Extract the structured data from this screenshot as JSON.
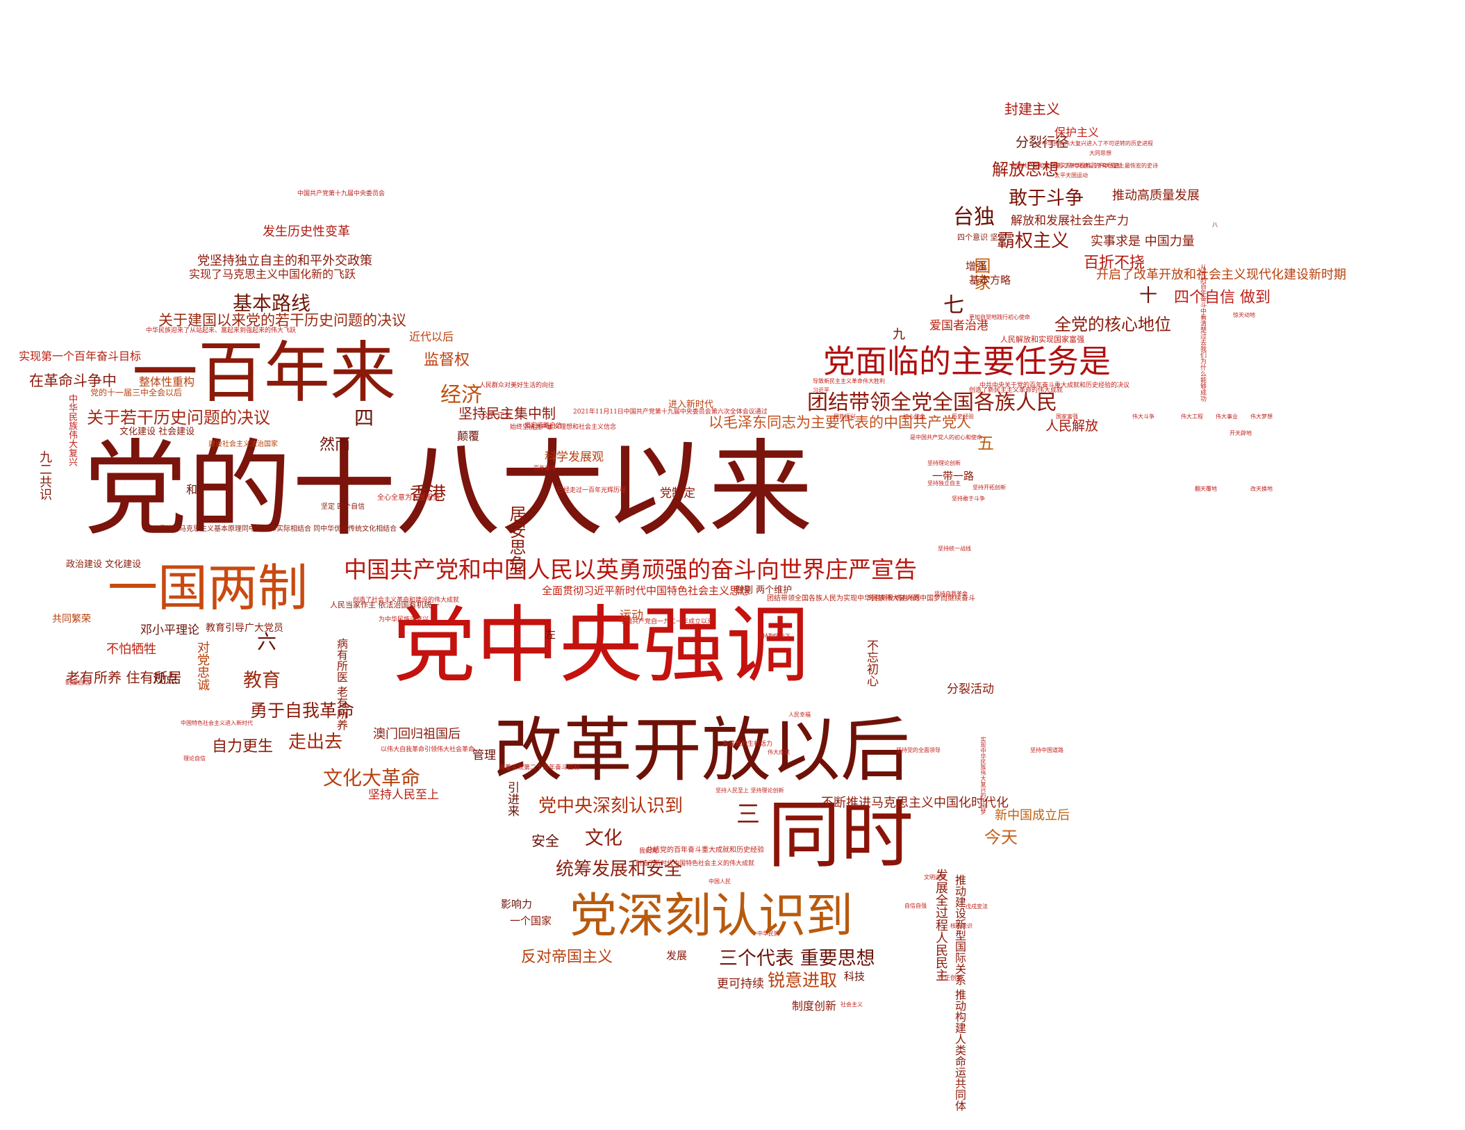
{
  "words": [
    {
      "text": "党的十八大以来",
      "color": "#7a140c"
    },
    {
      "text": "党中央强调",
      "color": "#c4120e"
    },
    {
      "text": "改革开放以后",
      "color": "#6e1208"
    },
    {
      "text": "一百年来",
      "color": "#8b1a0a"
    },
    {
      "text": "一国两制",
      "color": "#c84a10"
    },
    {
      "text": "同时",
      "color": "#8a1408"
    },
    {
      "text": "党深刻认识到",
      "color": "#b85a0e"
    },
    {
      "text": "党面临的主要任务是",
      "color": "#b01010"
    },
    {
      "text": "中国共产党和中国人民以英勇顽强的奋斗向世界庄严宣告",
      "color": "#b8160e"
    },
    {
      "text": "团结带领全党全国各族人民",
      "color": "#8e1a0c"
    },
    {
      "text": "以毛泽东同志为主要代表的中国共产党人",
      "color": "#c4501a"
    },
    {
      "text": "关于若干历史问题的决议",
      "color": "#a62814"
    },
    {
      "text": "关于建国以来党的若干历史问题的决议",
      "color": "#9a2a10"
    },
    {
      "text": "全面贯彻习近平新时代中国特色社会主义思想",
      "color": "#c02010"
    },
    {
      "text": "不断推进马克思主义中国化时代化",
      "color": "#902010"
    },
    {
      "text": "党中央深刻认识到",
      "color": "#b0300c"
    },
    {
      "text": "统筹发展和安全",
      "color": "#8a2010"
    },
    {
      "text": "三个代表 重要思想",
      "color": "#6a1208"
    },
    {
      "text": "勇于自我革命",
      "color": "#8a1a0a"
    },
    {
      "text": "文化大革命",
      "color": "#b8400e"
    },
    {
      "text": "走出去",
      "color": "#a8280c"
    },
    {
      "text": "自力更生",
      "color": "#8a1a0a"
    },
    {
      "text": "教育",
      "color": "#9a2a0e"
    },
    {
      "text": "香港",
      "color": "#8e1a0c"
    },
    {
      "text": "经济",
      "color": "#c0500e"
    },
    {
      "text": "基本路线",
      "color": "#6e1808"
    },
    {
      "text": "台独",
      "color": "#6a1006"
    },
    {
      "text": "敢于斗争",
      "color": "#7a1408"
    },
    {
      "text": "霸权主义",
      "color": "#8a1408"
    },
    {
      "text": "百折不挠",
      "color": "#b01810"
    },
    {
      "text": "全党的核心地位",
      "color": "#8a1a0c"
    },
    {
      "text": "解放思想",
      "color": "#9a1a0c"
    },
    {
      "text": "封建主义",
      "color": "#b01810"
    },
    {
      "text": "保护主义",
      "color": "#c0201a"
    },
    {
      "text": "分裂行径",
      "color": "#6e1608"
    },
    {
      "text": "人民解放",
      "color": "#a81a0e"
    },
    {
      "text": "今天",
      "color": "#c4601a"
    },
    {
      "text": "文化",
      "color": "#8a1a0a"
    },
    {
      "text": "锐意进取",
      "color": "#b8400e"
    },
    {
      "text": "反对帝国主义",
      "color": "#b8400e"
    },
    {
      "text": "澳门回归祖国后",
      "color": "#8a1a0c"
    },
    {
      "text": "发生历史性变革",
      "color": "#b01810"
    },
    {
      "text": "党坚持独立自主的和平外交政策",
      "color": "#8a1a0c"
    },
    {
      "text": "实现了马克思主义中国化新的飞跃",
      "color": "#9a2010"
    },
    {
      "text": "监督权",
      "color": "#c0400e"
    },
    {
      "text": "坚持民主集中制",
      "color": "#8a1a0c"
    },
    {
      "text": "科学发展观",
      "color": "#b8400e"
    },
    {
      "text": "五",
      "color": "#c06010"
    },
    {
      "text": "四",
      "color": "#6a1006"
    },
    {
      "text": "三",
      "color": "#8a1a0a"
    },
    {
      "text": "六",
      "color": "#6a1006"
    },
    {
      "text": "七",
      "color": "#6a1006"
    },
    {
      "text": "国家",
      "color": "#c06010"
    },
    {
      "text": "然而",
      "color": "#6a1006"
    },
    {
      "text": "一带一路",
      "color": "#8a1a0a"
    },
    {
      "text": "在革命斗争中",
      "color": "#8a1a0c"
    },
    {
      "text": "整体性重构",
      "color": "#b8400e"
    },
    {
      "text": "实现第一个百年奋斗目标",
      "color": "#b82010"
    },
    {
      "text": "近代以后",
      "color": "#b8400e"
    },
    {
      "text": "不怕牺牲",
      "color": "#c02010"
    },
    {
      "text": "邓小平理论",
      "color": "#6a1006"
    },
    {
      "text": "共同繁荣",
      "color": "#b8400e"
    },
    {
      "text": "政治建设 文化建设",
      "color": "#8a1a0a"
    },
    {
      "text": "老有所养 住有所居",
      "color": "#8a1a0a"
    },
    {
      "text": "观点",
      "color": "#6a1006"
    },
    {
      "text": "发展全过程人民民主",
      "color": "#8a1a0a"
    },
    {
      "text": "新中国成立后",
      "color": "#c06010"
    },
    {
      "text": "爱国者治港",
      "color": "#b82010"
    },
    {
      "text": "实事求是 中国力量",
      "color": "#8a1a0a"
    },
    {
      "text": "解放和发展社会生产力",
      "color": "#8a1a0c"
    },
    {
      "text": "开启了改革开放和社会主义现代化建设新时期",
      "color": "#b8400e"
    },
    {
      "text": "推动高质量发展",
      "color": "#8a1a0a"
    },
    {
      "text": "居安思危",
      "color": "#8a1a0a"
    },
    {
      "text": "九二共识",
      "color": "#8a1a0a"
    },
    {
      "text": "坚持人民至上",
      "color": "#b82010"
    },
    {
      "text": "更可持续",
      "color": "#8a1a0a"
    },
    {
      "text": "制度创新",
      "color": "#8a1a0a"
    },
    {
      "text": "分裂活动",
      "color": "#8a1a0a"
    },
    {
      "text": "影响力",
      "color": "#6a1006"
    },
    {
      "text": "一个国家",
      "color": "#8a1a0a"
    },
    {
      "text": "党制定",
      "color": "#8a1a0a"
    },
    {
      "text": "运动",
      "color": "#c0400e"
    },
    {
      "text": "管理",
      "color": "#6a1006"
    },
    {
      "text": "发展",
      "color": "#8a1a0a"
    },
    {
      "text": "科技",
      "color": "#6a1006"
    },
    {
      "text": "安全",
      "color": "#6a1006"
    },
    {
      "text": "左",
      "color": "#6a1006"
    },
    {
      "text": "九",
      "color": "#6a1006"
    },
    {
      "text": "增强",
      "color": "#8a1a0a"
    },
    {
      "text": "基本方略",
      "color": "#8a1a0a"
    },
    {
      "text": "和",
      "color": "#6a1006"
    },
    {
      "text": "颠覆",
      "color": "#6a1006"
    },
    {
      "text": "不忘初心",
      "color": "#8a1a0a"
    },
    {
      "text": "进入新时代",
      "color": "#b8400e"
    },
    {
      "text": "病有所医 老有所养",
      "color": "#8a1a0a"
    },
    {
      "text": "引进来",
      "color": "#6a1006"
    },
    {
      "text": "对党忠诚",
      "color": "#b8400e"
    },
    {
      "text": "教育引导广大党员",
      "color": "#8a1a0a"
    },
    {
      "text": "文化建设 社会建设",
      "color": "#8a1a0a"
    },
    {
      "text": "推动建设新型国际关系 推动构建人类命运共同体",
      "color": "#8a1a0a"
    },
    {
      "text": "建设社会主义法治国家",
      "color": "#b8400e"
    },
    {
      "text": "中华民族伟大复兴",
      "color": "#c0201a"
    },
    {
      "text": "党的十一届三中全会以后",
      "color": "#b8400e"
    },
    {
      "text": "做到 两个维护",
      "color": "#8a1a0a"
    },
    {
      "text": "人民当家作主 依法治国有机统一",
      "color": "#8a1a0a"
    },
    {
      "text": "坚定 四个自信",
      "color": "#8a1a0a"
    },
    {
      "text": "四个意识 坚定",
      "color": "#8a1a0a"
    },
    {
      "text": "人民解放和实现国家富强",
      "color": "#c0201a"
    },
    {
      "text": "坚持把马克思主义基本原理同中国具体实际相结合 同中华优秀传统文化相结合",
      "color": "#8a1a0a"
    },
    {
      "text": "团结带领全国各族人民为实现中华民族伟大复兴的中国梦而继续奋斗",
      "color": "#b82010"
    },
    {
      "text": "全心全意为人民服务",
      "color": "#c0201a"
    },
    {
      "text": "公平 正义",
      "color": "#c0201a"
    },
    {
      "text": "为中华民族谋复兴",
      "color": "#c0201a"
    },
    {
      "text": "中国共产党自一九二一年成立以来",
      "color": "#c0201a"
    },
    {
      "text": "我们党",
      "color": "#c0201a"
    },
    {
      "text": "创造了新时代中国特色社会主义的伟大成就",
      "color": "#c0201a"
    },
    {
      "text": "总结党的百年奋斗重大成就和历史经验",
      "color": "#c0201a"
    },
    {
      "text": "劳有所得 病有所医",
      "color": "#b82010"
    },
    {
      "text": "创造了社会主义革命和建设的伟大成就",
      "color": "#c0201a"
    },
    {
      "text": "2021年11月11日中国共产党第十九届中央委员会第六次全体会议通过",
      "color": "#c0201a"
    },
    {
      "text": "坚定道路自信",
      "color": "#c0201a"
    },
    {
      "text": "以伟大自我革命引领伟大社会革命",
      "color": "#c0201a"
    },
    {
      "text": "已经走过一百年光辉历程",
      "color": "#c0201a"
    },
    {
      "text": "永葆党的生机活力",
      "color": "#c0201a"
    },
    {
      "text": "向着实现第二个百年奋斗目标",
      "color": "#c0201a"
    },
    {
      "text": "中华民族迎来了从站起来、富起来到强起来的伟大飞跃",
      "color": "#c0201a"
    },
    {
      "text": "始终坚持共产主义理想和社会主义信念",
      "color": "#c0201a"
    },
    {
      "text": "人民群众对美好生活的向往",
      "color": "#c0201a"
    },
    {
      "text": "中国共产党第十九届中央委员会",
      "color": "#c0201a"
    },
    {
      "text": "太平天国运动",
      "color": "#c0201a"
    },
    {
      "text": "大同思想",
      "color": "#c0201a"
    },
    {
      "text": "中华民族伟大复兴进入了不可逆转的历史进程",
      "color": "#c0201a"
    },
    {
      "text": "书写了中华民族几千年历史上最恢宏的史诗",
      "color": "#c0201a"
    },
    {
      "text": "中国共产党和社会主义现代化建设的伟大成就",
      "color": "#c0201a"
    },
    {
      "text": "坚持党的全面领导",
      "color": "#c0201a"
    },
    {
      "text": "坚持中国道路",
      "color": "#c0201a"
    },
    {
      "text": "戊戌变法",
      "color": "#c0201a"
    },
    {
      "text": "自信自强",
      "color": "#c0201a"
    },
    {
      "text": "守正创新",
      "color": "#c0201a"
    },
    {
      "text": "核心意识",
      "color": "#c0201a"
    },
    {
      "text": "文明进步",
      "color": "#c0201a"
    },
    {
      "text": "实现中华民族伟大复兴的中国梦",
      "color": "#c0201a"
    },
    {
      "text": "中国特色社会主义进入新时代",
      "color": "#c0201a"
    },
    {
      "text": "理论自信",
      "color": "#c0201a"
    },
    {
      "text": "制度自信",
      "color": "#c0201a"
    },
    {
      "text": "一九二一年",
      "color": "#c0201a"
    },
    {
      "text": "百年奋斗",
      "color": "#c0201a"
    },
    {
      "text": "人民幸福",
      "color": "#c0201a"
    },
    {
      "text": "伟大成就",
      "color": "#c0201a"
    },
    {
      "text": "历史经验",
      "color": "#c0201a"
    },
    {
      "text": "国家富强",
      "color": "#c0201a"
    },
    {
      "text": "民族振兴",
      "color": "#c0201a"
    },
    {
      "text": "初心使命",
      "color": "#c0201a"
    },
    {
      "text": "伟大斗争",
      "color": "#c0201a"
    },
    {
      "text": "伟大工程",
      "color": "#c0201a"
    },
    {
      "text": "伟大事业",
      "color": "#c0201a"
    },
    {
      "text": "伟大梦想",
      "color": "#c0201a"
    },
    {
      "text": "开天辟地",
      "color": "#c0201a"
    },
    {
      "text": "改天换地",
      "color": "#c0201a"
    },
    {
      "text": "翻天覆地",
      "color": "#c0201a"
    },
    {
      "text": "惊天动地",
      "color": "#c0201a"
    },
    {
      "text": "八",
      "color": "#6a1006"
    },
    {
      "text": "十",
      "color": "#6a1006"
    },
    {
      "text": "四个自信 做到",
      "color": "#c0201a"
    },
    {
      "text": "从党的百年奋斗中看清楚过去我们为什么能够成功",
      "color": "#c0201a"
    },
    {
      "text": "更加自觉地践行初心使命",
      "color": "#c0201a"
    },
    {
      "text": "中共中央关于党的百年奋斗重大成就和历史经验的决议",
      "color": "#c0201a"
    },
    {
      "text": "创造了新民主主义革命的伟大成就",
      "color": "#c0201a"
    },
    {
      "text": "习近平",
      "color": "#c0201a"
    },
    {
      "text": "导致新民主主义革命伟大胜利",
      "color": "#c0201a"
    },
    {
      "text": "是中国共产党人的初心和使命",
      "color": "#c0201a"
    },
    {
      "text": "坚持理论创新",
      "color": "#c0201a"
    },
    {
      "text": "坚持独立自主",
      "color": "#c0201a"
    },
    {
      "text": "坚持开拓创新",
      "color": "#c0201a"
    },
    {
      "text": "坚持敢于斗争",
      "color": "#c0201a"
    },
    {
      "text": "坚持统一战线",
      "color": "#c0201a"
    },
    {
      "text": "坚持自我革命",
      "color": "#c0201a"
    },
    {
      "text": "坚持胸怀天下",
      "color": "#c0201a"
    },
    {
      "text": "坚持人民至上 坚持理论创新",
      "color": "#c0201a"
    },
    {
      "text": "中国人民",
      "color": "#c0201a"
    },
    {
      "text": "中华民族",
      "color": "#c0201a"
    },
    {
      "text": "社会主义",
      "color": "#c0201a"
    }
  ]
}
